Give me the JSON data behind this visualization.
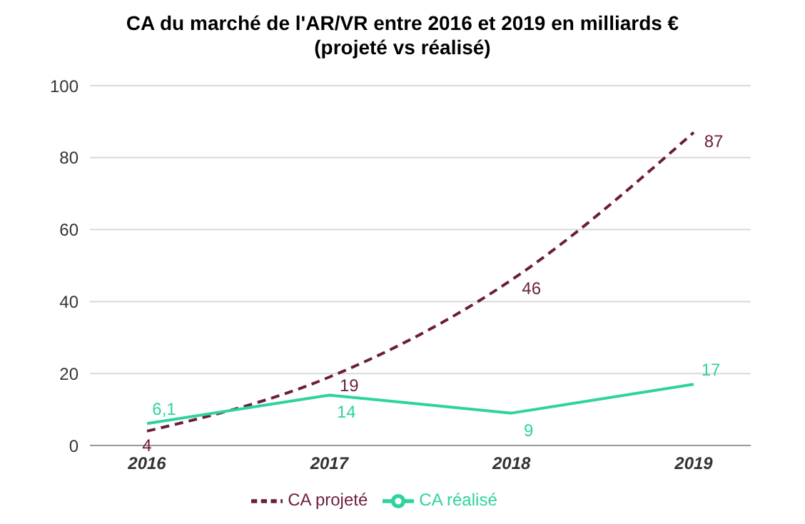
{
  "chart_data": {
    "type": "line",
    "title": "CA du marché de l'AR/VR entre 2016 et 2019 en milliards €\n(projeté vs réalisé)",
    "categories": [
      "2016",
      "2017",
      "2018",
      "2019"
    ],
    "series": [
      {
        "name": "CA projeté",
        "color": "#6b1d3f",
        "values": [
          4,
          19,
          46,
          87
        ],
        "line_style": "dashed",
        "value_labels": [
          "4",
          "19",
          "46",
          "87"
        ]
      },
      {
        "name": "CA réalisé",
        "color": "#2ed3a0",
        "values": [
          6.1,
          14,
          9,
          17
        ],
        "line_style": "solid",
        "value_labels": [
          "6,1",
          "14",
          "9",
          "17"
        ]
      }
    ],
    "ylim": [
      0,
      100
    ],
    "yticks": [
      0,
      20,
      40,
      60,
      80,
      100
    ],
    "grid": "y",
    "legend": "bottom",
    "marker": "none"
  }
}
